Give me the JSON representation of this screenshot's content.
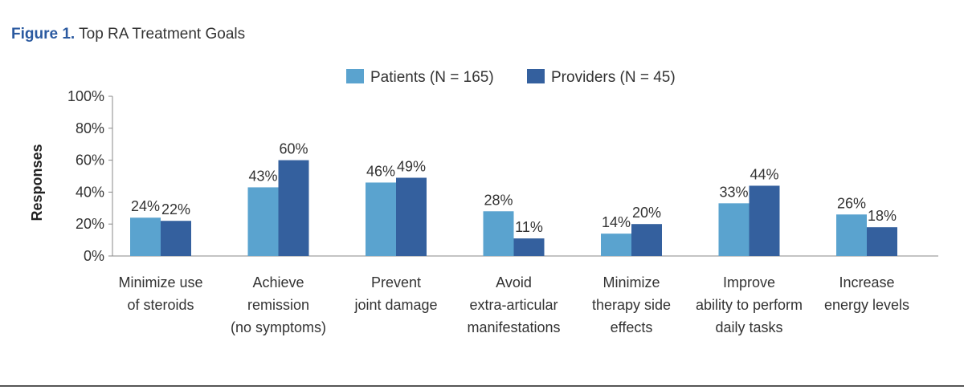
{
  "figure": {
    "label": "Figure 1.",
    "title": "Top RA Treatment Goals"
  },
  "chart_data": {
    "type": "bar",
    "title": "Top RA Treatment Goals",
    "ylabel": "Responses",
    "xlabel": "",
    "ylim": [
      0,
      100
    ],
    "yticks": [
      "0%",
      "20%",
      "40%",
      "60%",
      "80%",
      "100%"
    ],
    "y_tick_values": [
      0,
      20,
      40,
      60,
      80,
      100
    ],
    "grid": false,
    "legend_position": "top-center",
    "categories": [
      [
        "Minimize use",
        "of steroids"
      ],
      [
        "Achieve",
        "remission",
        "(no symptoms)"
      ],
      [
        "Prevent",
        "joint damage"
      ],
      [
        "Avoid",
        "extra-articular",
        "manifestations"
      ],
      [
        "Minimize",
        "therapy side",
        "effects"
      ],
      [
        "Improve",
        "ability to perform",
        "daily tasks"
      ],
      [
        "Increase",
        "energy levels"
      ]
    ],
    "series": [
      {
        "name": "Patients (N = 165)",
        "color": "#5aa3cf",
        "values": [
          24,
          43,
          46,
          28,
          14,
          33,
          26
        ],
        "labels": [
          "24%",
          "43%",
          "46%",
          "28%",
          "14%",
          "33%",
          "26%"
        ]
      },
      {
        "name": "Providers (N = 45)",
        "color": "#34609e",
        "values": [
          22,
          60,
          49,
          11,
          20,
          44,
          18
        ],
        "labels": [
          "22%",
          "60%",
          "49%",
          "11%",
          "20%",
          "44%",
          "18%"
        ]
      }
    ]
  }
}
